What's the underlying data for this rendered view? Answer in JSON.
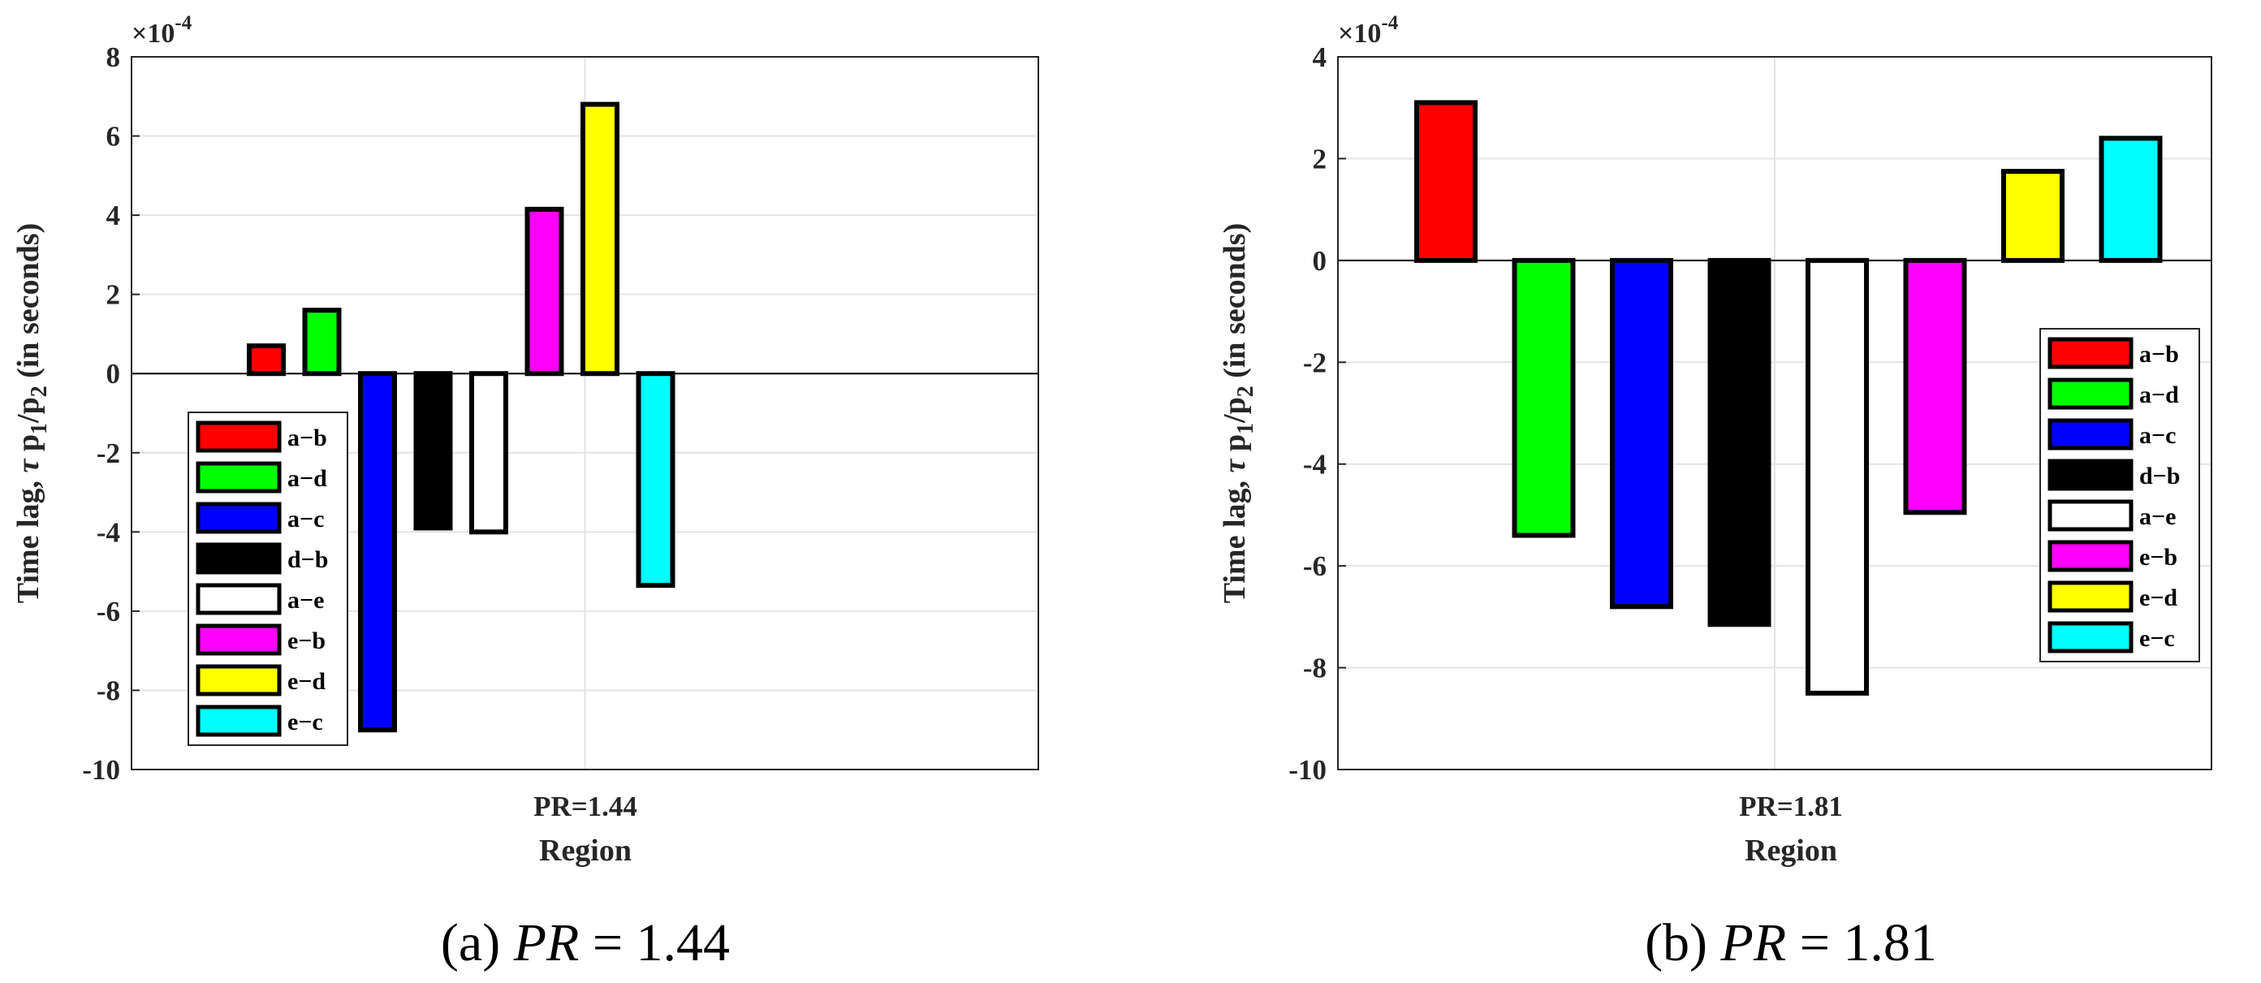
{
  "chart_data": [
    {
      "type": "bar",
      "caption_prefix": "(a)",
      "caption_var": "PR",
      "caption_value": "= 1.44",
      "ylabel": "Time lag, τ p1/p2 (in seconds)",
      "ylabel_parts": {
        "a": "Time lag, ",
        "tau": "τ",
        "b": " p",
        "s1": "1",
        "c": "/p",
        "s2": "2",
        "d": " (in seconds)"
      },
      "exponent_label": "×10",
      "exponent_power": "-4",
      "xtick": "PR=1.44",
      "xlabel": "Region",
      "ylim": [
        -10,
        8
      ],
      "yticks": [
        -10,
        -8,
        -6,
        -4,
        -2,
        0,
        2,
        4,
        6,
        8
      ],
      "grid": true,
      "legend_position": "left-center",
      "categories": [
        "a−b",
        "a−d",
        "a−c",
        "d−b",
        "a−e",
        "e−b",
        "e−d",
        "e−c"
      ],
      "values": [
        0.7,
        1.6,
        -9.0,
        -3.9,
        -4.0,
        4.15,
        6.8,
        -5.35
      ],
      "colors": [
        "#ff0000",
        "#00ff00",
        "#0000ff",
        "#000000",
        "#ffffff",
        "#ff00ff",
        "#ffff00",
        "#00ffff"
      ]
    },
    {
      "type": "bar",
      "caption_prefix": "(b)",
      "caption_var": "PR",
      "caption_value": "= 1.81",
      "ylabel": "Time lag, τ p1/p2 (in seconds)",
      "ylabel_parts": {
        "a": "Time lag, ",
        "tau": "τ",
        "b": " p",
        "s1": "1",
        "c": "/p",
        "s2": "2",
        "d": " (in seconds)"
      },
      "exponent_label": "×10",
      "exponent_power": "-4",
      "xtick": "PR=1.81",
      "xlabel": "Region",
      "ylim": [
        -10,
        4
      ],
      "yticks": [
        -10,
        -8,
        -6,
        -4,
        -2,
        0,
        2,
        4
      ],
      "grid": true,
      "legend_position": "right-center",
      "categories": [
        "a−b",
        "a−d",
        "a−c",
        "d−b",
        "a−e",
        "e−b",
        "e−d",
        "e−c"
      ],
      "values": [
        3.1,
        -5.4,
        -6.8,
        -7.15,
        -8.5,
        -4.95,
        1.75,
        2.4
      ],
      "colors": [
        "#ff0000",
        "#00ff00",
        "#0000ff",
        "#000000",
        "#ffffff",
        "#ff00ff",
        "#ffff00",
        "#00ffff"
      ]
    }
  ]
}
